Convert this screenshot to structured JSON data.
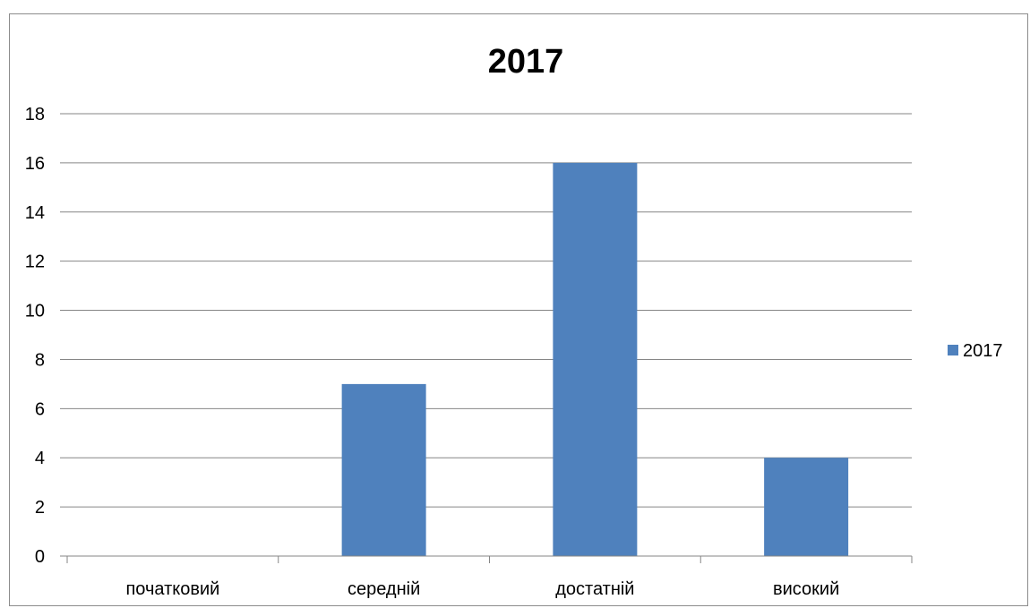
{
  "chart_data": {
    "type": "bar",
    "title": "2017",
    "categories": [
      "початковий",
      "середній",
      "достатній",
      "високий"
    ],
    "series": [
      {
        "name": "2017",
        "values": [
          0,
          7,
          16,
          4
        ],
        "color": "#4f81bd"
      }
    ],
    "ylim": [
      0,
      18
    ],
    "yticks": [
      0,
      2,
      4,
      6,
      8,
      10,
      12,
      14,
      16,
      18
    ],
    "xlabel": "",
    "ylabel": "",
    "grid": true,
    "legend_position": "right",
    "colors": {
      "bar": "#4f81bd",
      "grid": "#868686",
      "axis": "#868686",
      "frame": "#8c8c8c"
    }
  }
}
